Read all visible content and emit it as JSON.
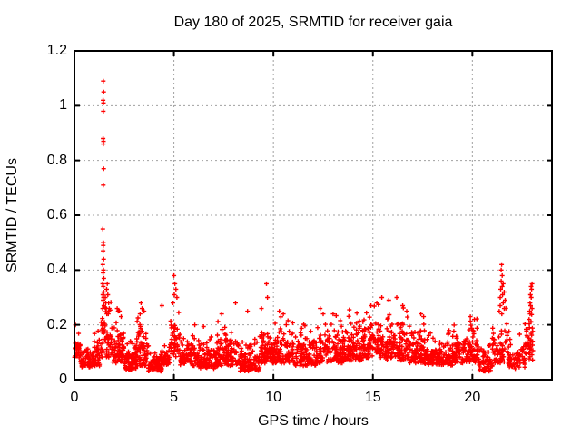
{
  "figure": {
    "title": "Day 180 of 2025, SRMTID for receiver gaia",
    "xlabel": "GPS time / hours",
    "ylabel": "SRMTID / TECUs"
  },
  "chart_data": {
    "type": "scatter",
    "title": "Day 180 of 2025, SRMTID for receiver gaia",
    "xlabel": "GPS time / hours",
    "ylabel": "SRMTID / TECUs",
    "xlim": [
      0,
      24
    ],
    "ylim": [
      0,
      1.2
    ],
    "xticks": [
      [
        0,
        "0"
      ],
      [
        5,
        "5"
      ],
      [
        10,
        "10"
      ],
      [
        15,
        "15"
      ],
      [
        20,
        "20"
      ]
    ],
    "yticks": [
      [
        0,
        "0"
      ],
      [
        0.2,
        "0.2"
      ],
      [
        0.4,
        "0.4"
      ],
      [
        0.6,
        "0.6"
      ],
      [
        0.8,
        "0.8"
      ],
      [
        1,
        "1"
      ],
      [
        1.2,
        "1.2"
      ]
    ],
    "grid": true,
    "grid_color": "#a0a0a0",
    "border_color": "#000000",
    "marker": "plus",
    "marker_color": "#ff0000",
    "x_data_range": [
      0,
      23.0
    ],
    "baseline_band": [
      0.03,
      0.25
    ],
    "seed": 180,
    "density_segments": [
      [
        0.0,
        0.3,
        30,
        0.08,
        0.045
      ],
      [
        0.3,
        0.9,
        55,
        0.045,
        0.035
      ],
      [
        0.9,
        1.3,
        40,
        0.05,
        0.05
      ],
      [
        1.3,
        1.6,
        30,
        0.08,
        0.1
      ],
      [
        1.6,
        1.9,
        30,
        0.08,
        0.08
      ],
      [
        1.9,
        2.5,
        70,
        0.06,
        0.06
      ],
      [
        2.5,
        3.1,
        70,
        0.035,
        0.045
      ],
      [
        3.1,
        3.7,
        70,
        0.05,
        0.07
      ],
      [
        3.7,
        4.4,
        75,
        0.03,
        0.04
      ],
      [
        4.4,
        4.8,
        35,
        0.05,
        0.05
      ],
      [
        4.8,
        5.3,
        45,
        0.08,
        0.09
      ],
      [
        5.3,
        6.2,
        95,
        0.05,
        0.05
      ],
      [
        6.2,
        7.2,
        105,
        0.04,
        0.045
      ],
      [
        7.2,
        8.3,
        110,
        0.05,
        0.065
      ],
      [
        8.3,
        9.3,
        100,
        0.03,
        0.05
      ],
      [
        9.3,
        10.1,
        85,
        0.06,
        0.06
      ],
      [
        10.1,
        11.0,
        95,
        0.06,
        0.06
      ],
      [
        11.0,
        12.2,
        120,
        0.05,
        0.055
      ],
      [
        12.2,
        13.5,
        130,
        0.06,
        0.06
      ],
      [
        13.5,
        14.5,
        110,
        0.07,
        0.065
      ],
      [
        14.5,
        15.6,
        115,
        0.08,
        0.07
      ],
      [
        15.6,
        16.6,
        105,
        0.07,
        0.07
      ],
      [
        16.6,
        17.6,
        100,
        0.06,
        0.06
      ],
      [
        17.6,
        19.0,
        140,
        0.05,
        0.05
      ],
      [
        19.0,
        20.3,
        130,
        0.06,
        0.06
      ],
      [
        20.3,
        21.0,
        60,
        0.03,
        0.045
      ],
      [
        21.0,
        21.8,
        60,
        0.06,
        0.07
      ],
      [
        21.8,
        22.65,
        65,
        0.04,
        0.05
      ],
      [
        22.65,
        23.05,
        45,
        0.07,
        0.08
      ]
    ],
    "outliers": [
      [
        0.05,
        0.2
      ],
      [
        1.45,
        1.09
      ],
      [
        1.47,
        1.05
      ],
      [
        1.44,
        1.02
      ],
      [
        1.46,
        1.01
      ],
      [
        1.45,
        0.98
      ],
      [
        1.44,
        0.88
      ],
      [
        1.46,
        0.87
      ],
      [
        1.45,
        0.86
      ],
      [
        1.47,
        0.77
      ],
      [
        1.45,
        0.71
      ],
      [
        1.43,
        0.55
      ],
      [
        1.44,
        0.5
      ],
      [
        1.46,
        0.5
      ],
      [
        1.45,
        0.49
      ],
      [
        1.44,
        0.47
      ],
      [
        1.47,
        0.44
      ],
      [
        1.43,
        0.42
      ],
      [
        1.46,
        0.4
      ],
      [
        1.44,
        0.39
      ],
      [
        1.48,
        0.37
      ],
      [
        1.42,
        0.35
      ],
      [
        1.45,
        0.34
      ],
      [
        1.47,
        0.32
      ],
      [
        1.43,
        0.31
      ],
      [
        1.46,
        0.3
      ],
      [
        1.44,
        0.29
      ],
      [
        1.48,
        0.27
      ],
      [
        1.42,
        0.26
      ],
      [
        1.55,
        0.3
      ],
      [
        1.58,
        0.28
      ],
      [
        1.62,
        0.33
      ],
      [
        1.65,
        0.35
      ],
      [
        1.68,
        0.31
      ],
      [
        1.72,
        0.28
      ],
      [
        1.75,
        0.26
      ],
      [
        1.6,
        0.26
      ],
      [
        1.63,
        0.24
      ],
      [
        1.7,
        0.24
      ],
      [
        2.15,
        0.26
      ],
      [
        2.2,
        0.25
      ],
      [
        2.35,
        0.23
      ],
      [
        3.35,
        0.28
      ],
      [
        3.4,
        0.26
      ],
      [
        3.5,
        0.25
      ],
      [
        3.3,
        0.24
      ],
      [
        4.4,
        0.27
      ],
      [
        5.0,
        0.38
      ],
      [
        5.05,
        0.35
      ],
      [
        5.1,
        0.33
      ],
      [
        5.02,
        0.31
      ],
      [
        5.15,
        0.3
      ],
      [
        4.95,
        0.28
      ],
      [
        6.05,
        0.2
      ],
      [
        7.4,
        0.24
      ],
      [
        8.1,
        0.28
      ],
      [
        8.7,
        0.25
      ],
      [
        9.65,
        0.35
      ],
      [
        9.7,
        0.3
      ],
      [
        9.4,
        0.26
      ],
      [
        10.3,
        0.25
      ],
      [
        10.5,
        0.24
      ],
      [
        12.35,
        0.26
      ],
      [
        12.5,
        0.24
      ],
      [
        13.0,
        0.24
      ],
      [
        14.9,
        0.27
      ],
      [
        15.2,
        0.28
      ],
      [
        15.45,
        0.3
      ],
      [
        15.8,
        0.29
      ],
      [
        16.2,
        0.3
      ],
      [
        16.5,
        0.27
      ],
      [
        16.7,
        0.25
      ],
      [
        17.55,
        0.23
      ],
      [
        19.9,
        0.23
      ],
      [
        20.1,
        0.22
      ],
      [
        21.35,
        0.25
      ],
      [
        21.4,
        0.3
      ],
      [
        21.42,
        0.33
      ],
      [
        21.45,
        0.36
      ],
      [
        21.45,
        0.4
      ],
      [
        21.47,
        0.42
      ],
      [
        21.5,
        0.38
      ],
      [
        21.5,
        0.34
      ],
      [
        21.52,
        0.31
      ],
      [
        21.55,
        0.28
      ],
      [
        21.55,
        0.35
      ],
      [
        21.6,
        0.32
      ],
      [
        21.6,
        0.26
      ],
      [
        21.65,
        0.29
      ],
      [
        21.4,
        0.27
      ],
      [
        21.48,
        0.24
      ],
      [
        22.85,
        0.22
      ],
      [
        22.88,
        0.25
      ],
      [
        22.9,
        0.28
      ],
      [
        22.92,
        0.31
      ],
      [
        22.95,
        0.34
      ],
      [
        22.9,
        0.24
      ],
      [
        22.93,
        0.27
      ],
      [
        22.96,
        0.3
      ],
      [
        22.98,
        0.33
      ],
      [
        23.0,
        0.35
      ],
      [
        22.87,
        0.19
      ],
      [
        22.95,
        0.21
      ],
      [
        23.0,
        0.26
      ]
    ]
  }
}
